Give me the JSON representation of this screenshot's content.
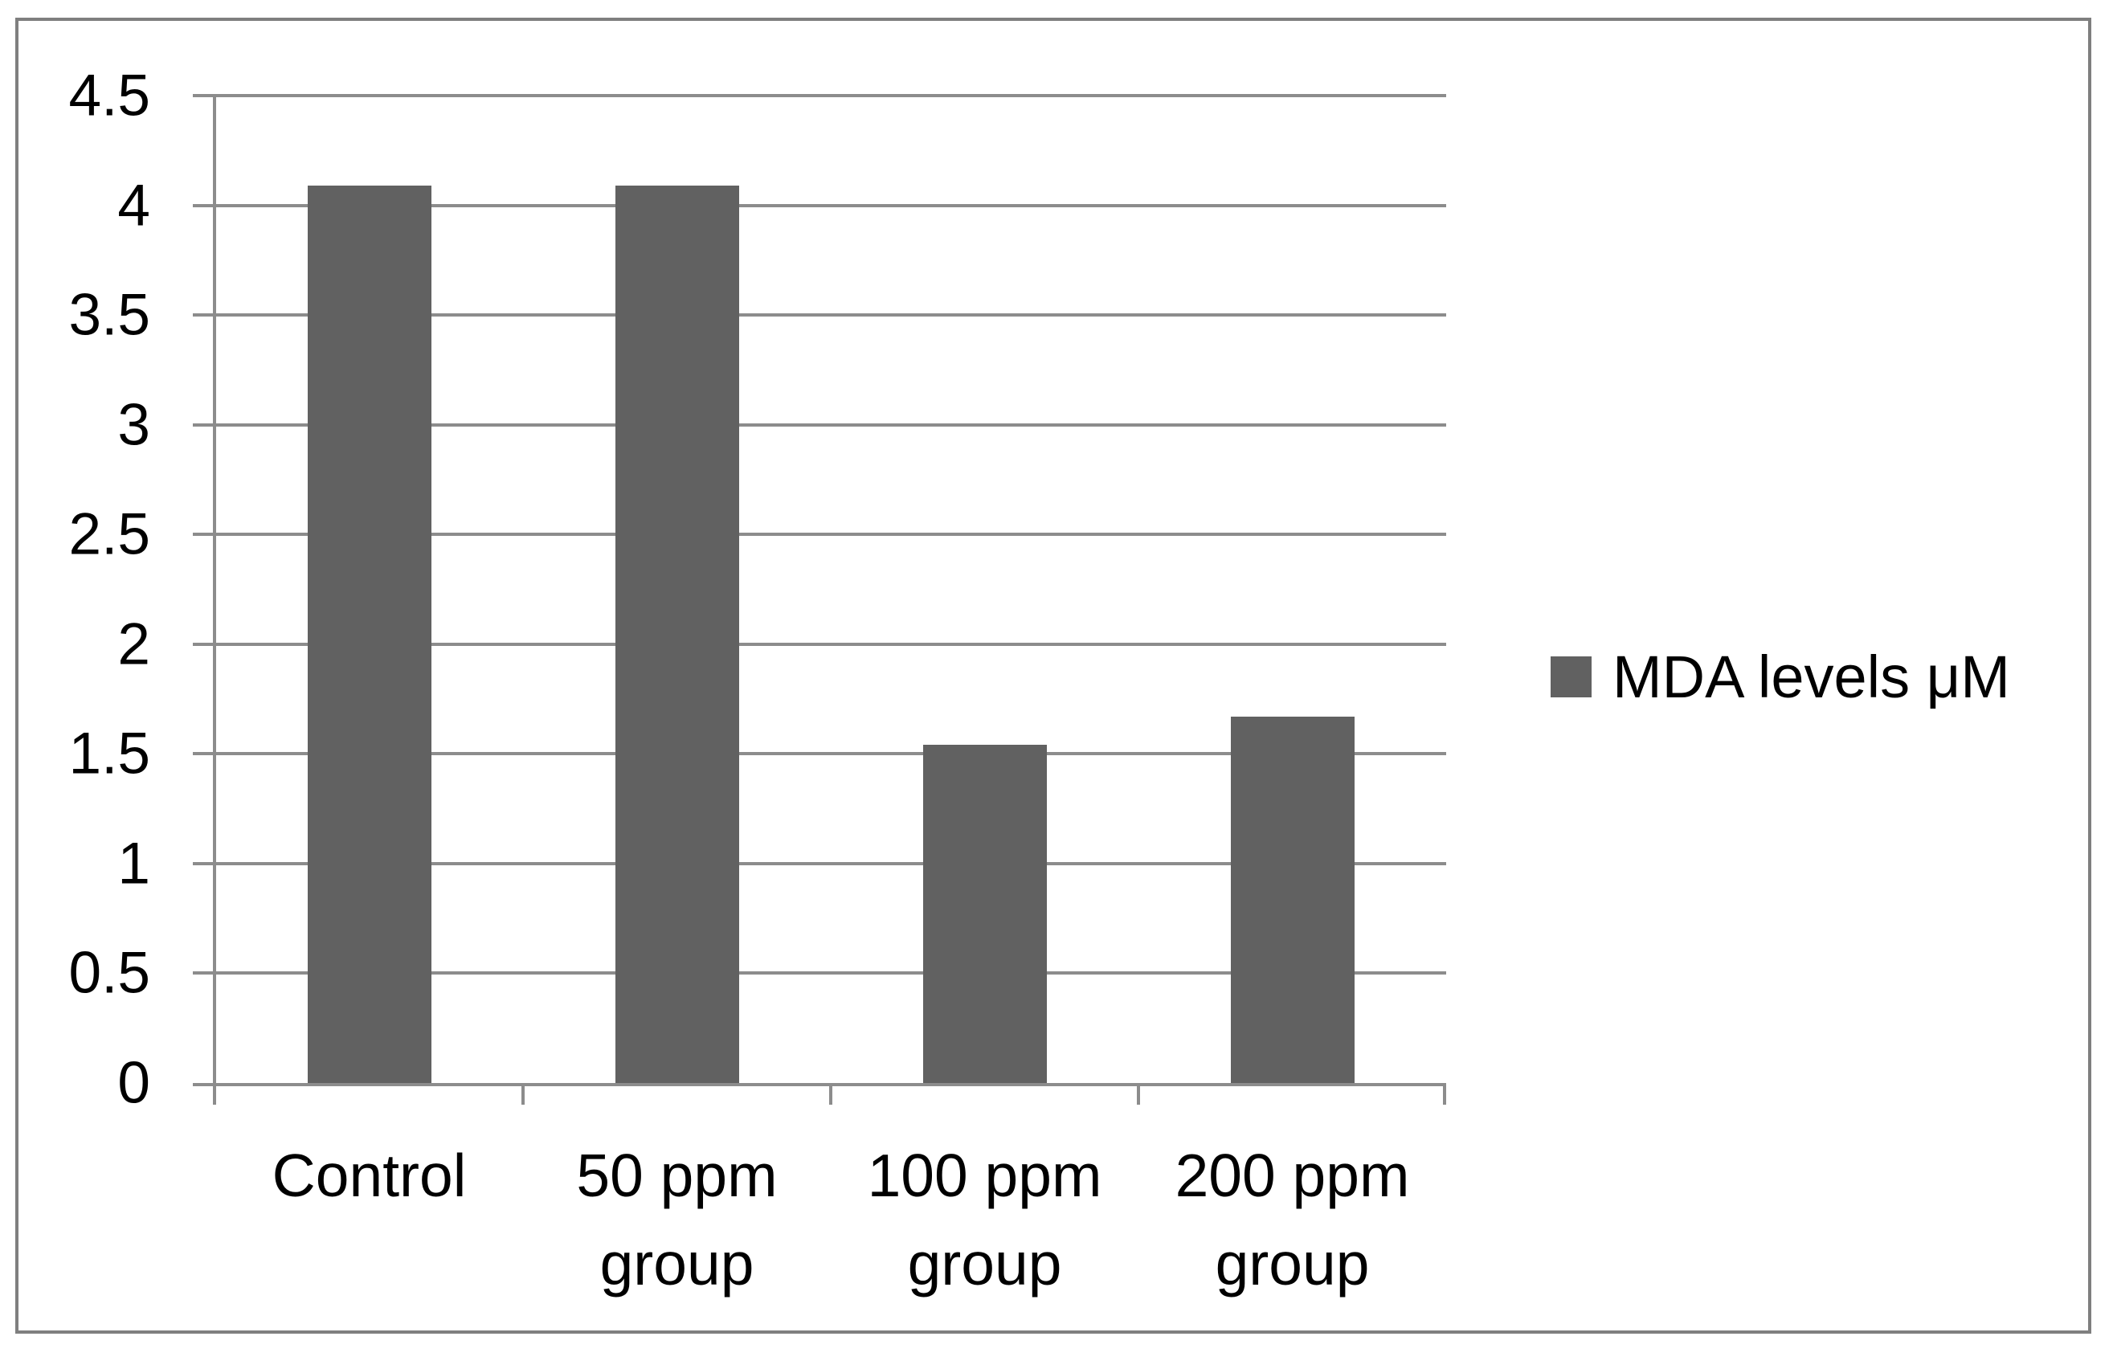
{
  "chart_data": {
    "type": "bar",
    "title": "",
    "xlabel": "",
    "ylabel": "",
    "categories": [
      "Control",
      "50 ppm group",
      "100 ppm group",
      "200 ppm group"
    ],
    "values": [
      4.09,
      4.09,
      1.54,
      1.67
    ],
    "series_name": "MDA levels μM",
    "ylim": [
      0,
      4.5
    ],
    "ytick_step": 0.5,
    "yticks": [
      0,
      0.5,
      1,
      1.5,
      2,
      2.5,
      3,
      3.5,
      4,
      4.5
    ],
    "grid": true,
    "legend_position": "right",
    "bar_color": "#616161",
    "gridline_color": "#8c8c8c",
    "axis_color": "#8c8c8c",
    "frame_border_color": "#7f7f7f",
    "text_color": "#000000",
    "background_color": "#ffffff"
  },
  "y_axis": {
    "tick_labels": [
      "0",
      "0.5",
      "1",
      "1.5",
      "2",
      "2.5",
      "3",
      "3.5",
      "4",
      "4.5"
    ]
  },
  "x_axis": {
    "labels": [
      [
        "Control"
      ],
      [
        "50 ppm",
        "group"
      ],
      [
        "100 ppm",
        "group"
      ],
      [
        "200 ppm",
        "group"
      ]
    ]
  },
  "legend": {
    "label": "MDA levels μM",
    "swatch_color": "#616161"
  }
}
